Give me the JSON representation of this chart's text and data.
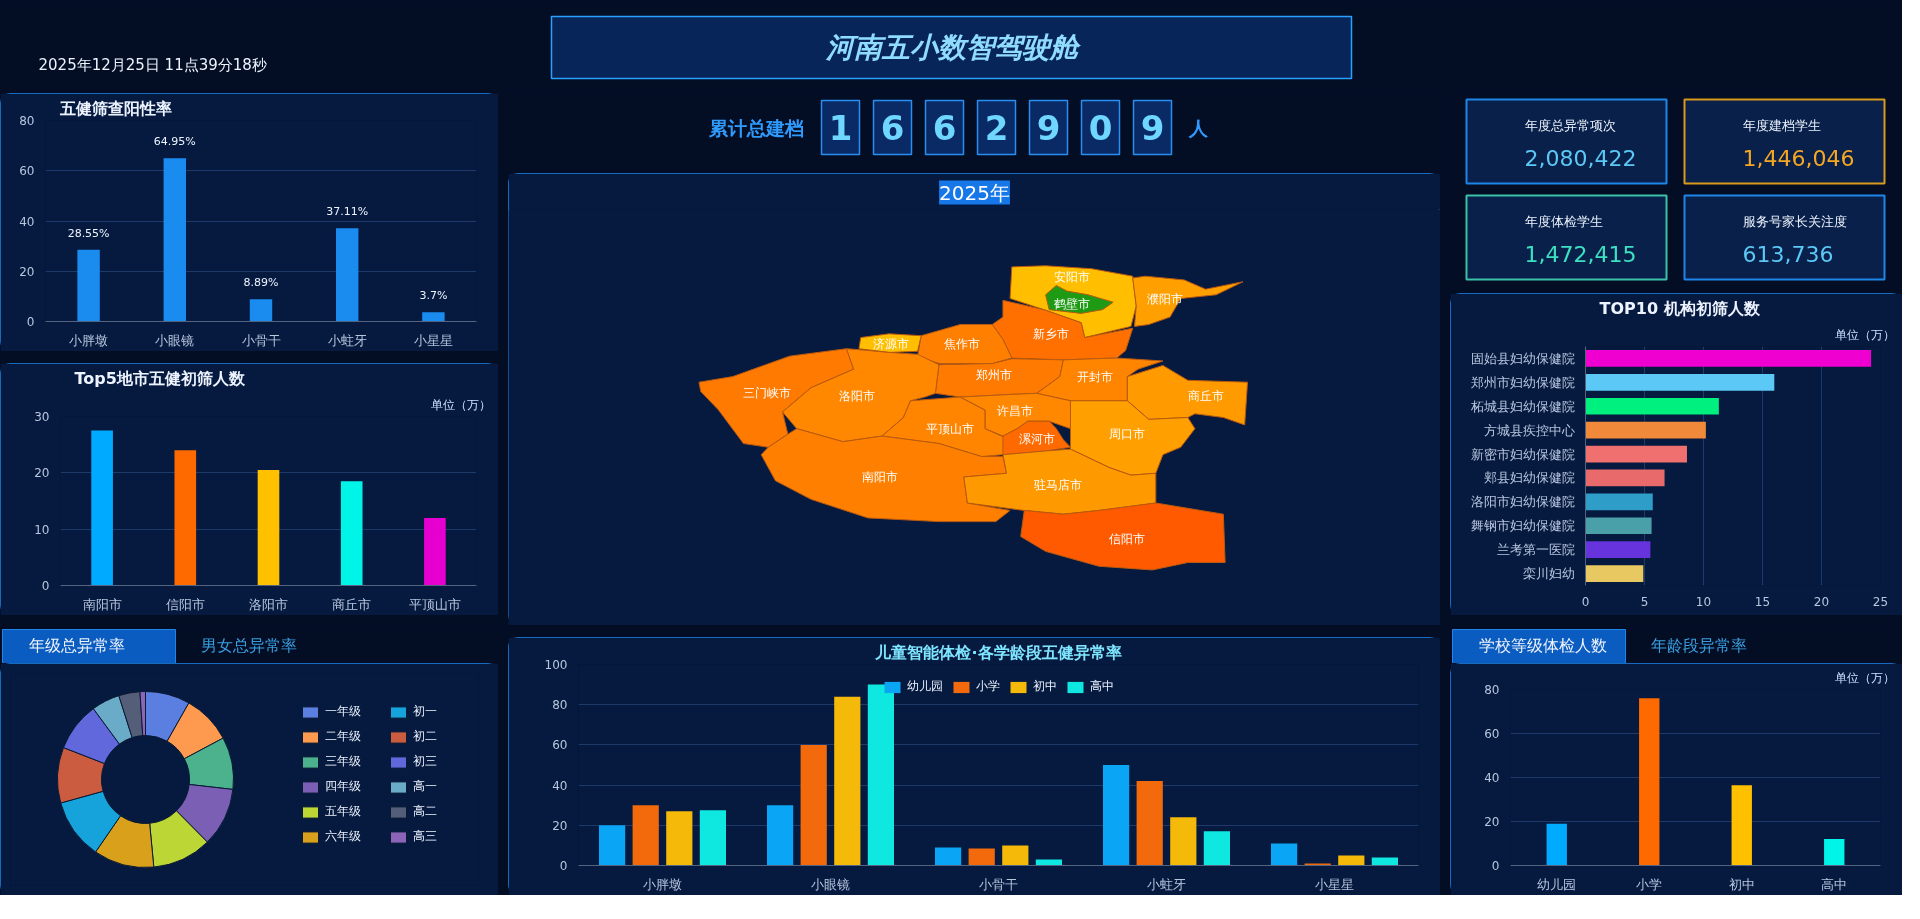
{
  "chart_data": [
    {
      "type": "other",
      "title": "河南五小数智驾驶舱",
      "annotations": [
        "2025年12月25日 11点39分18秒"
      ]
    },
    {
      "type": "bar",
      "title": "五健筛查阳性率",
      "categories": [
        "小胖墩",
        "小眼镜",
        "小骨干",
        "小蛀牙",
        "小星星"
      ],
      "values": [
        28.55,
        64.95,
        8.89,
        37.11,
        3.7
      ],
      "value_labels": [
        "28.55%",
        "64.95%",
        "8.89%",
        "37.11%",
        "3.7%"
      ],
      "color": "#1a8cf0",
      "ylim": [
        0,
        80
      ],
      "yticks": [
        0,
        20,
        40,
        60,
        80
      ],
      "grid": "y"
    },
    {
      "type": "bar",
      "title": "Top5地市五健初筛人数",
      "ylabel": "单位（万）",
      "categories": [
        "南阳市",
        "信阳市",
        "洛阳市",
        "商丘市",
        "平顶山市"
      ],
      "values": [
        27.5,
        24,
        20.5,
        18.5,
        12
      ],
      "colors": [
        "#00aaff",
        "#ff6a00",
        "#ffc000",
        "#00f5e8",
        "#e600d0"
      ],
      "ylim": [
        0,
        30
      ],
      "yticks": [
        0,
        10,
        20,
        30
      ],
      "grid": "y"
    },
    {
      "type": "donut",
      "title": "年级总异常率",
      "annotations": [
        "男女总异常率"
      ],
      "categories": [
        "一年级",
        "二年级",
        "三年级",
        "四年级",
        "五年级",
        "六年级",
        "初一",
        "初二",
        "初三",
        "高一",
        "高二",
        "高三"
      ],
      "values": [
        8.2,
        9.0,
        9.6,
        10.8,
        10.9,
        11.1,
        11.1,
        10.2,
        9.0,
        5.2,
        3.9,
        1.0
      ],
      "colors": [
        "#5b7fe0",
        "#fd9a4f",
        "#4cb28d",
        "#7b5fb5",
        "#bcd635",
        "#d9a11b",
        "#16a3dc",
        "#cc5c40",
        "#6168dc",
        "#6aabc8",
        "#555e78",
        "#8c65b8"
      ],
      "legend": "right"
    },
    {
      "type": "other",
      "title": "累计总建档",
      "annotations": [
        "1",
        "6",
        "6",
        "2",
        "9",
        "0",
        "9",
        "人"
      ]
    },
    {
      "type": "other",
      "title": "2025年",
      "categories": [
        "安阳市",
        "鹤壁市",
        "濮阳市",
        "新乡市",
        "焦作市",
        "济源市",
        "郑州市",
        "开封市",
        "商丘市",
        "三门峡市",
        "洛阳市",
        "平顶山市",
        "许昌市",
        "漯河市",
        "周口市",
        "南阳市",
        "驻马店市",
        "信阳市"
      ],
      "colors": [
        "#ffbf00",
        "#1e9a14",
        "#ff9f00",
        "#ff7000",
        "#ff8000",
        "#ffbf00",
        "#ff7a00",
        "#ff8400",
        "#ff9a00",
        "#ff7a00",
        "#ff8800",
        "#ff8400",
        "#ff8800",
        "#ff6a00",
        "#ffa000",
        "#ff8000",
        "#ff9900",
        "#ff5a00"
      ]
    },
    {
      "type": "bar",
      "title": "儿童智能体检·各学龄段五健异常率",
      "categories": [
        "小胖墩",
        "小眼镜",
        "小骨干",
        "小蛀牙",
        "小星星"
      ],
      "series": [
        {
          "name": "幼儿园",
          "color": "#0aa5f5",
          "values": [
            20,
            30,
            9,
            50,
            11
          ]
        },
        {
          "name": "小学",
          "color": "#f26a0c",
          "values": [
            30,
            60,
            8.5,
            42,
            1
          ]
        },
        {
          "name": "初中",
          "color": "#f5b90a",
          "values": [
            27,
            84,
            10,
            24,
            5
          ]
        },
        {
          "name": "高中",
          "color": "#0ee8e0",
          "values": [
            27.5,
            90,
            3,
            17,
            4
          ]
        }
      ],
      "ylim": [
        0,
        100
      ],
      "yticks": [
        0,
        20,
        40,
        60,
        80,
        100
      ],
      "grid": "y",
      "legend": "top"
    },
    {
      "type": "other",
      "annotations": [
        "年度总异常项次",
        "2,080,422",
        "年度建档学生",
        "1,446,046",
        "年度体检学生",
        "1,472,415",
        "服务号家长关注度",
        "613,736"
      ]
    },
    {
      "type": "bar",
      "orientation": "horizontal",
      "title": "TOP10 机构初筛人数",
      "xlabel": "单位（万）",
      "categories": [
        "固始县妇幼保健院",
        "郑州市妇幼保健院",
        "柘城县妇幼保健院",
        "方城县疾控中心",
        "新密市妇幼保健院",
        "郏县妇幼保健院",
        "洛阳市妇幼保健院",
        "舞钢市妇幼保健院",
        "兰考第一医院",
        "栾川妇幼"
      ],
      "values": [
        24.2,
        16,
        11.3,
        10.2,
        8.6,
        6.7,
        5.7,
        5.6,
        5.5,
        4.9
      ],
      "colors": [
        "#f000d0",
        "#5bc8f5",
        "#00f080",
        "#f08a3a",
        "#f07070",
        "#e86a6a",
        "#2e9ec8",
        "#4aa0a8",
        "#6633dd",
        "#e8c860"
      ],
      "xlim": [
        0,
        25
      ],
      "xticks": [
        0,
        5,
        10,
        15,
        20,
        25
      ],
      "grid": "x"
    },
    {
      "type": "bar",
      "title": "学校等级体检人数",
      "annotations": [
        "年龄段异常率"
      ],
      "ylabel": "单位（万）",
      "categories": [
        "幼儿园",
        "小学",
        "初中",
        "高中"
      ],
      "values": [
        19,
        76,
        36.5,
        12
      ],
      "colors": [
        "#00aaff",
        "#ff6a00",
        "#ffc000",
        "#00f5e8"
      ],
      "ylim": [
        0,
        80
      ],
      "yticks": [
        0,
        20,
        40,
        60,
        80
      ],
      "grid": "y"
    }
  ]
}
